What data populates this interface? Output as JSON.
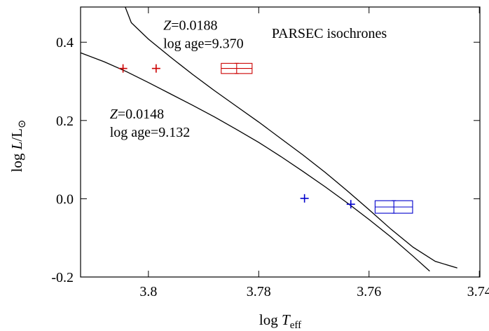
{
  "chart_data": {
    "type": "scatter",
    "title": "PARSEC isochrones",
    "xlabel": {
      "base": "log ",
      "var": "T",
      "sub": "eff"
    },
    "ylabel": {
      "base": "log ",
      "var": "L",
      "mid": "/L",
      "sub": "⊙"
    },
    "x_reversed": true,
    "xlim": [
      3.8123,
      3.7399
    ],
    "ylim": [
      -0.2,
      0.49
    ],
    "xticks": [
      {
        "value": 3.8,
        "label": "3.8"
      },
      {
        "value": 3.78,
        "label": "3.78"
      },
      {
        "value": 3.76,
        "label": "3.76"
      },
      {
        "value": 3.74,
        "label": "3.74"
      }
    ],
    "yticks": [
      {
        "value": 0.4,
        "label": "0.4"
      },
      {
        "value": 0.2,
        "label": "0.2"
      },
      {
        "value": 0.0,
        "label": "0.0"
      },
      {
        "value": -0.2,
        "label": "-0.2"
      }
    ],
    "grid": false,
    "legend": "none",
    "series": [
      {
        "id": "isochrone-z0188",
        "kind": "line",
        "color": "#000000",
        "x": [
          3.8042,
          3.8031,
          3.8,
          3.796,
          3.792,
          3.788,
          3.784,
          3.78,
          3.776,
          3.772,
          3.768,
          3.764,
          3.76,
          3.756,
          3.752,
          3.748,
          3.744
        ],
        "y": [
          0.49,
          0.45,
          0.408,
          0.362,
          0.318,
          0.276,
          0.236,
          0.196,
          0.154,
          0.112,
          0.068,
          0.021,
          -0.028,
          -0.078,
          -0.124,
          -0.16,
          -0.177
        ]
      },
      {
        "id": "isochrone-z0148",
        "kind": "line",
        "color": "#000000",
        "x": [
          3.8123,
          3.808,
          3.804,
          3.8,
          3.796,
          3.792,
          3.788,
          3.784,
          3.78,
          3.776,
          3.772,
          3.768,
          3.764,
          3.76,
          3.756,
          3.752,
          3.749
        ],
        "y": [
          0.373,
          0.35,
          0.325,
          0.297,
          0.268,
          0.239,
          0.209,
          0.177,
          0.144,
          0.108,
          0.07,
          0.031,
          -0.01,
          -0.053,
          -0.098,
          -0.147,
          -0.185
        ]
      },
      {
        "id": "red-plus",
        "kind": "markers",
        "marker": "plus",
        "color": "#cc0000",
        "x": [
          3.8046,
          3.7986
        ],
        "y": [
          0.333,
          0.333
        ]
      },
      {
        "id": "blue-plus",
        "kind": "markers",
        "marker": "plus",
        "color": "#0000cc",
        "x": [
          3.7717,
          3.7633
        ],
        "y": [
          0.001,
          -0.014
        ]
      }
    ],
    "error_boxes": [
      {
        "id": "red-box",
        "color": "#cc0000",
        "x": 3.784,
        "y": 0.333,
        "x_err": 0.0028,
        "y_err": 0.013
      },
      {
        "id": "blue-box",
        "color": "#0000cc",
        "x": 3.7555,
        "y": -0.021,
        "x_err": 0.0034,
        "y_err": 0.016
      }
    ],
    "annotations": [
      {
        "id": "anno-z0188",
        "x": 3.7973,
        "y": 0.432,
        "var": "Z",
        "text": "=0.0188"
      },
      {
        "id": "anno-age-9370",
        "x": 3.7973,
        "y": 0.385,
        "var": "",
        "text": "log age=9.370"
      },
      {
        "id": "anno-z0148",
        "x": 3.807,
        "y": 0.205,
        "var": "Z",
        "text": "=0.0148"
      },
      {
        "id": "anno-age-9132",
        "x": 3.807,
        "y": 0.158,
        "var": "",
        "text": "log age=9.132"
      }
    ]
  }
}
